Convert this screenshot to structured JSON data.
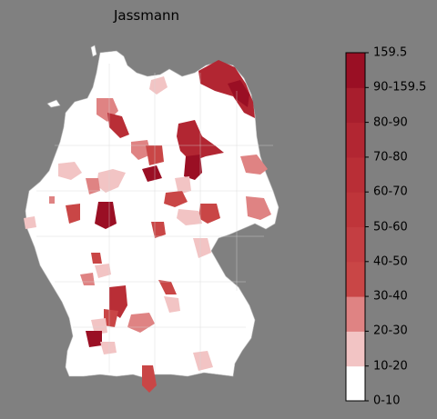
{
  "title": "Jassmann",
  "colorbar": {
    "min_label": "0-10",
    "max_label": "159.5",
    "bins": [
      {
        "label": "0-10",
        "color": "#ffffff"
      },
      {
        "label": "10-20",
        "color": "#f2c4c4"
      },
      {
        "label": "20-30",
        "color": "#df8383"
      },
      {
        "label": "30-40",
        "color": "#c94646"
      },
      {
        "label": "40-50",
        "color": "#c43e42"
      },
      {
        "label": "50-60",
        "color": "#bf353a"
      },
      {
        "label": "60-70",
        "color": "#b92e36"
      },
      {
        "label": "70-80",
        "color": "#b22632"
      },
      {
        "label": "80-90",
        "color": "#a81e2d"
      },
      {
        "label": "90-159.5",
        "color": "#9a0f24"
      }
    ],
    "tick_labels": [
      "0-10",
      "10-20",
      "20-30",
      "30-40",
      "40-50",
      "50-60",
      "60-70",
      "70-80",
      "80-90",
      "90-159.5",
      "159.5"
    ]
  },
  "map": {
    "country": "Germany",
    "base_color": "#ffffff",
    "border_color": "#cccccc"
  }
}
